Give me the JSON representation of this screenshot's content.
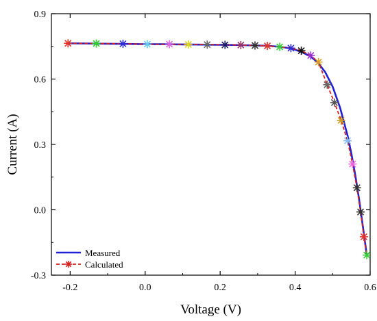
{
  "chart_data": {
    "type": "line",
    "xlabel": "Voltage (V)",
    "ylabel": "Current (A)",
    "xlim": [
      -0.25,
      0.6
    ],
    "ylim": [
      -0.3,
      0.9
    ],
    "x_ticks": [
      -0.2,
      0.0,
      0.2,
      0.4,
      0.6
    ],
    "x_tick_labels": [
      "-0.2",
      "0.0",
      "0.2",
      "0.4",
      "0.6"
    ],
    "y_ticks": [
      -0.3,
      0.0,
      0.3,
      0.6,
      0.9
    ],
    "y_tick_labels": [
      "-0.3",
      "0.0",
      "0.3",
      "0.6",
      "0.9"
    ],
    "grid": false,
    "legend_position": "bottom-left",
    "series": [
      {
        "name": "Measured",
        "style": "solid-line",
        "color": "#1f1fd6",
        "x": [
          -0.2057,
          -0.15,
          -0.1,
          -0.05,
          0.0,
          0.05,
          0.1,
          0.15,
          0.2,
          0.25,
          0.3,
          0.33,
          0.36,
          0.38,
          0.4,
          0.42,
          0.44,
          0.46,
          0.48,
          0.5,
          0.52,
          0.54,
          0.55,
          0.56,
          0.57,
          0.58,
          0.5911
        ],
        "y": [
          0.764,
          0.763,
          0.762,
          0.761,
          0.76,
          0.76,
          0.759,
          0.758,
          0.757,
          0.756,
          0.754,
          0.752,
          0.748,
          0.743,
          0.735,
          0.722,
          0.705,
          0.677,
          0.632,
          0.565,
          0.468,
          0.339,
          0.258,
          0.163,
          0.054,
          -0.07,
          -0.208
        ]
      },
      {
        "name": "Calculated",
        "style": "dashed-line-with-asterisk-markers",
        "color": "#d62020",
        "x": [
          -0.2057,
          -0.1303,
          -0.0591,
          0.0057,
          0.0646,
          0.1151,
          0.1655,
          0.2129,
          0.2551,
          0.2929,
          0.3259,
          0.3589,
          0.3887,
          0.4164,
          0.4416,
          0.4622,
          0.4854,
          0.5047,
          0.5226,
          0.5397,
          0.5531,
          0.5648,
          0.5744,
          0.5833,
          0.5911
        ],
        "y": [
          0.764,
          0.763,
          0.762,
          0.76,
          0.76,
          0.759,
          0.758,
          0.757,
          0.756,
          0.754,
          0.752,
          0.748,
          0.742,
          0.73,
          0.708,
          0.678,
          0.574,
          0.492,
          0.41,
          0.317,
          0.21,
          0.101,
          -0.01,
          -0.124,
          -0.208
        ]
      }
    ],
    "marker_colors": [
      "#e0302a",
      "#33cc33",
      "#2b2bd6",
      "#66ccee",
      "#dd66dd",
      "#ddd320",
      "#666666",
      "#1a1a6a",
      "#993366",
      "#333333",
      "#e0302a",
      "#33cc33",
      "#2b2bd6",
      "#111111",
      "#9933cc",
      "#dda020",
      "#666666",
      "#555555",
      "#cc9922",
      "#88bbee",
      "#ee66dd",
      "#333333",
      "#333333",
      "#e0302a",
      "#33cc33"
    ]
  }
}
